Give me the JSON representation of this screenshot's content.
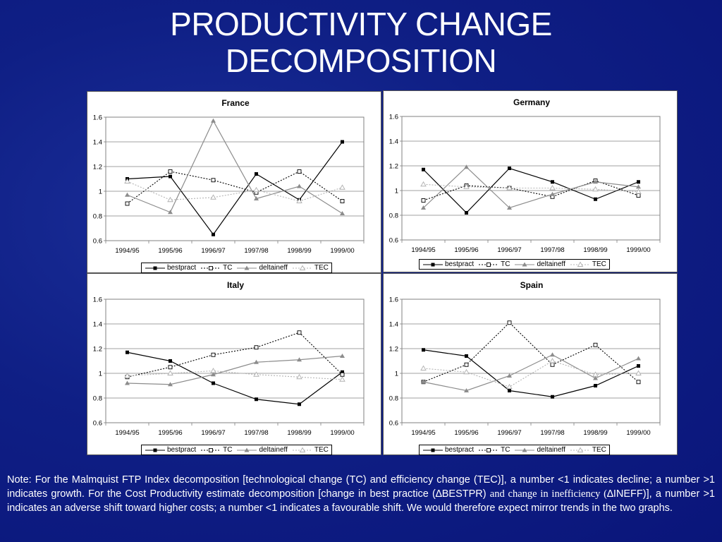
{
  "slide": {
    "title_line1": "PRODUCTIVITY CHANGE",
    "title_line2": "DECOMPOSITION"
  },
  "legend_labels": [
    "bestpract",
    "TC",
    "deltaineff",
    "TEC"
  ],
  "note": {
    "part1": "Note: For the Malmquist FTP Index decomposition [technological change (TC) and efficiency change (TEC)], a number <1 indicates decline; a number >1 indicates growth. For the Cost Productivity estimate decomposition [change in best practice (",
    "delta1": "∆",
    "part2": "BESTPR) ",
    "serif_and": "and change in inefficiency (",
    "delta2": "∆",
    "part3": "INEFF)], a number >1 indicates an adverse shift toward higher costs; a number <1 indicates a favourable shift. We would therefore expect mirror trends in the two graphs."
  },
  "chart_data": [
    {
      "type": "line",
      "title": "France",
      "categories": [
        "1994/95",
        "1995/96",
        "1996/97",
        "1997/98",
        "1998/99",
        "1999/00"
      ],
      "ylim": [
        0.6,
        1.6
      ],
      "yticks": [
        "0.6",
        "0.8",
        "1",
        "1.2",
        "1.4",
        "1.6"
      ],
      "grid": true,
      "legend_position": "bottom",
      "series": [
        {
          "name": "bestpract",
          "values": [
            1.1,
            1.12,
            0.65,
            1.14,
            0.93,
            1.4
          ]
        },
        {
          "name": "TC",
          "values": [
            0.9,
            1.16,
            1.09,
            0.99,
            1.16,
            0.92
          ]
        },
        {
          "name": "deltaineff",
          "values": [
            0.97,
            0.83,
            1.57,
            0.94,
            1.04,
            0.82
          ]
        },
        {
          "name": "TEC",
          "values": [
            1.08,
            0.93,
            0.95,
            1.01,
            0.92,
            1.03
          ]
        }
      ]
    },
    {
      "type": "line",
      "title": "Germany",
      "categories": [
        "1994/95",
        "1995/96",
        "1996/97",
        "1997/98",
        "1998/99",
        "1999/00"
      ],
      "ylim": [
        0.6,
        1.6
      ],
      "yticks": [
        "0.6",
        "0.8",
        "1",
        "1.2",
        "1.4",
        "1.6"
      ],
      "grid": true,
      "legend_position": "bottom",
      "series": [
        {
          "name": "bestpract",
          "values": [
            1.17,
            0.82,
            1.18,
            1.07,
            0.93,
            1.07
          ]
        },
        {
          "name": "TC",
          "values": [
            0.92,
            1.04,
            1.02,
            0.95,
            1.08,
            0.96
          ]
        },
        {
          "name": "deltaineff",
          "values": [
            0.86,
            1.19,
            0.86,
            0.97,
            1.07,
            1.03
          ]
        },
        {
          "name": "TEC",
          "values": [
            1.05,
            1.03,
            1.02,
            1.02,
            1.01,
            0.99
          ]
        }
      ]
    },
    {
      "type": "line",
      "title": "Italy",
      "categories": [
        "1994/95",
        "1995/96",
        "1996/97",
        "1997/98",
        "1998/99",
        "1999/00"
      ],
      "ylim": [
        0.6,
        1.6
      ],
      "yticks": [
        "0.6",
        "0.8",
        "1",
        "1.2",
        "1.4",
        "1.6"
      ],
      "grid": true,
      "legend_position": "bottom",
      "series": [
        {
          "name": "bestpract",
          "values": [
            1.17,
            1.1,
            0.92,
            0.79,
            0.75,
            1.01
          ]
        },
        {
          "name": "TC",
          "values": [
            0.97,
            1.05,
            1.15,
            1.21,
            1.33,
            0.99
          ]
        },
        {
          "name": "deltaineff",
          "values": [
            0.92,
            0.91,
            0.99,
            1.09,
            1.11,
            1.14
          ]
        },
        {
          "name": "TEC",
          "values": [
            0.98,
            1.0,
            1.02,
            0.99,
            0.97,
            0.95
          ]
        }
      ]
    },
    {
      "type": "line",
      "title": "Spain",
      "categories": [
        "1994/95",
        "1995/96",
        "1996/97",
        "1997/98",
        "1998/99",
        "1999/00"
      ],
      "ylim": [
        0.6,
        1.6
      ],
      "yticks": [
        "0.6",
        "0.8",
        "1",
        "1.2",
        "1.4",
        "1.6"
      ],
      "grid": true,
      "legend_position": "bottom",
      "series": [
        {
          "name": "bestpract",
          "values": [
            1.19,
            1.14,
            0.86,
            0.81,
            0.9,
            1.06
          ]
        },
        {
          "name": "TC",
          "values": [
            0.93,
            1.07,
            1.41,
            1.07,
            1.23,
            0.93
          ]
        },
        {
          "name": "deltaineff",
          "values": [
            0.93,
            0.86,
            0.98,
            1.15,
            0.96,
            1.12
          ]
        },
        {
          "name": "TEC",
          "values": [
            1.04,
            1.01,
            0.89,
            1.1,
            0.99,
            1.0
          ]
        }
      ]
    }
  ]
}
